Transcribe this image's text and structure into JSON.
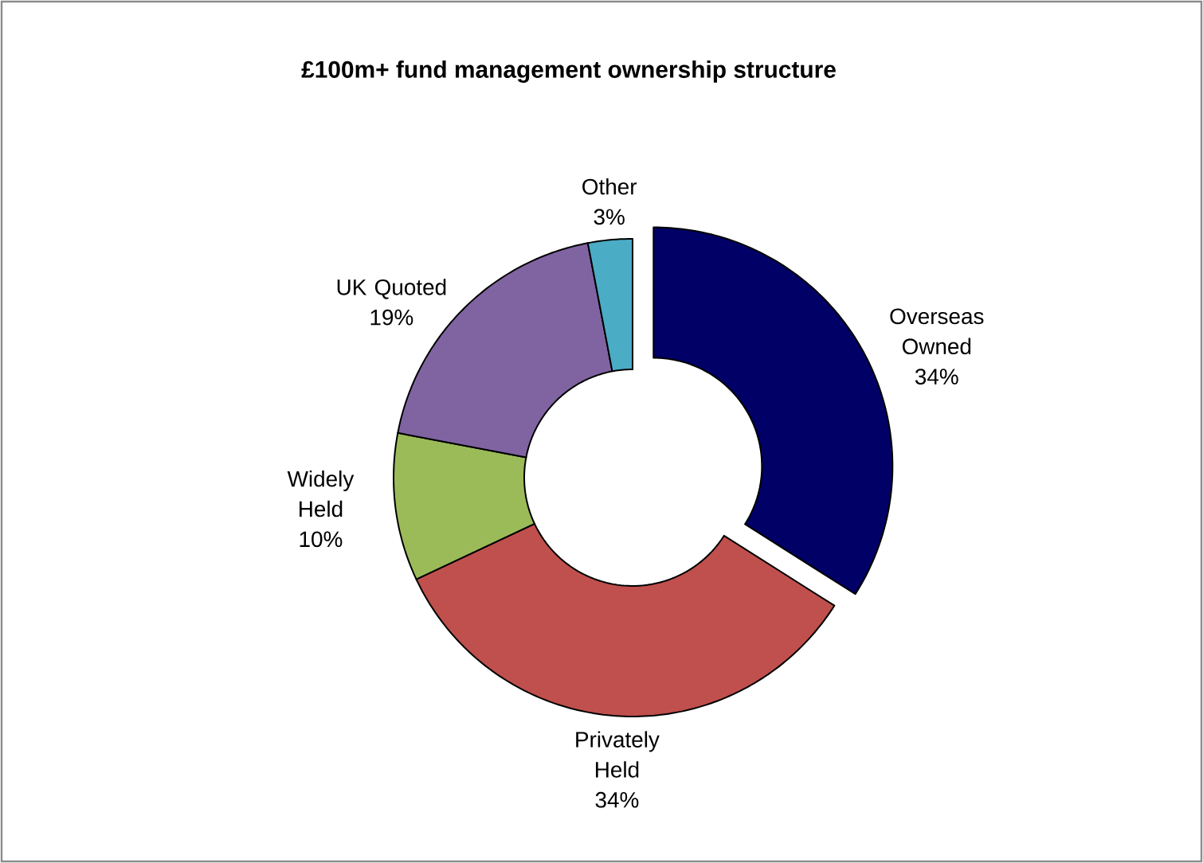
{
  "chart_data": {
    "type": "donut",
    "title": "£100m+ fund management ownership structure",
    "categories": [
      "Overseas Owned",
      "Privately Held",
      "Widely Held",
      "UK Quoted",
      "Other"
    ],
    "values": [
      34,
      34,
      10,
      19,
      3
    ],
    "colors": [
      "#000066",
      "#c0504d",
      "#9bbb59",
      "#8064a2",
      "#4bacc6"
    ],
    "value_labels": [
      "34%",
      "34%",
      "10%",
      "19%",
      "3%"
    ]
  }
}
